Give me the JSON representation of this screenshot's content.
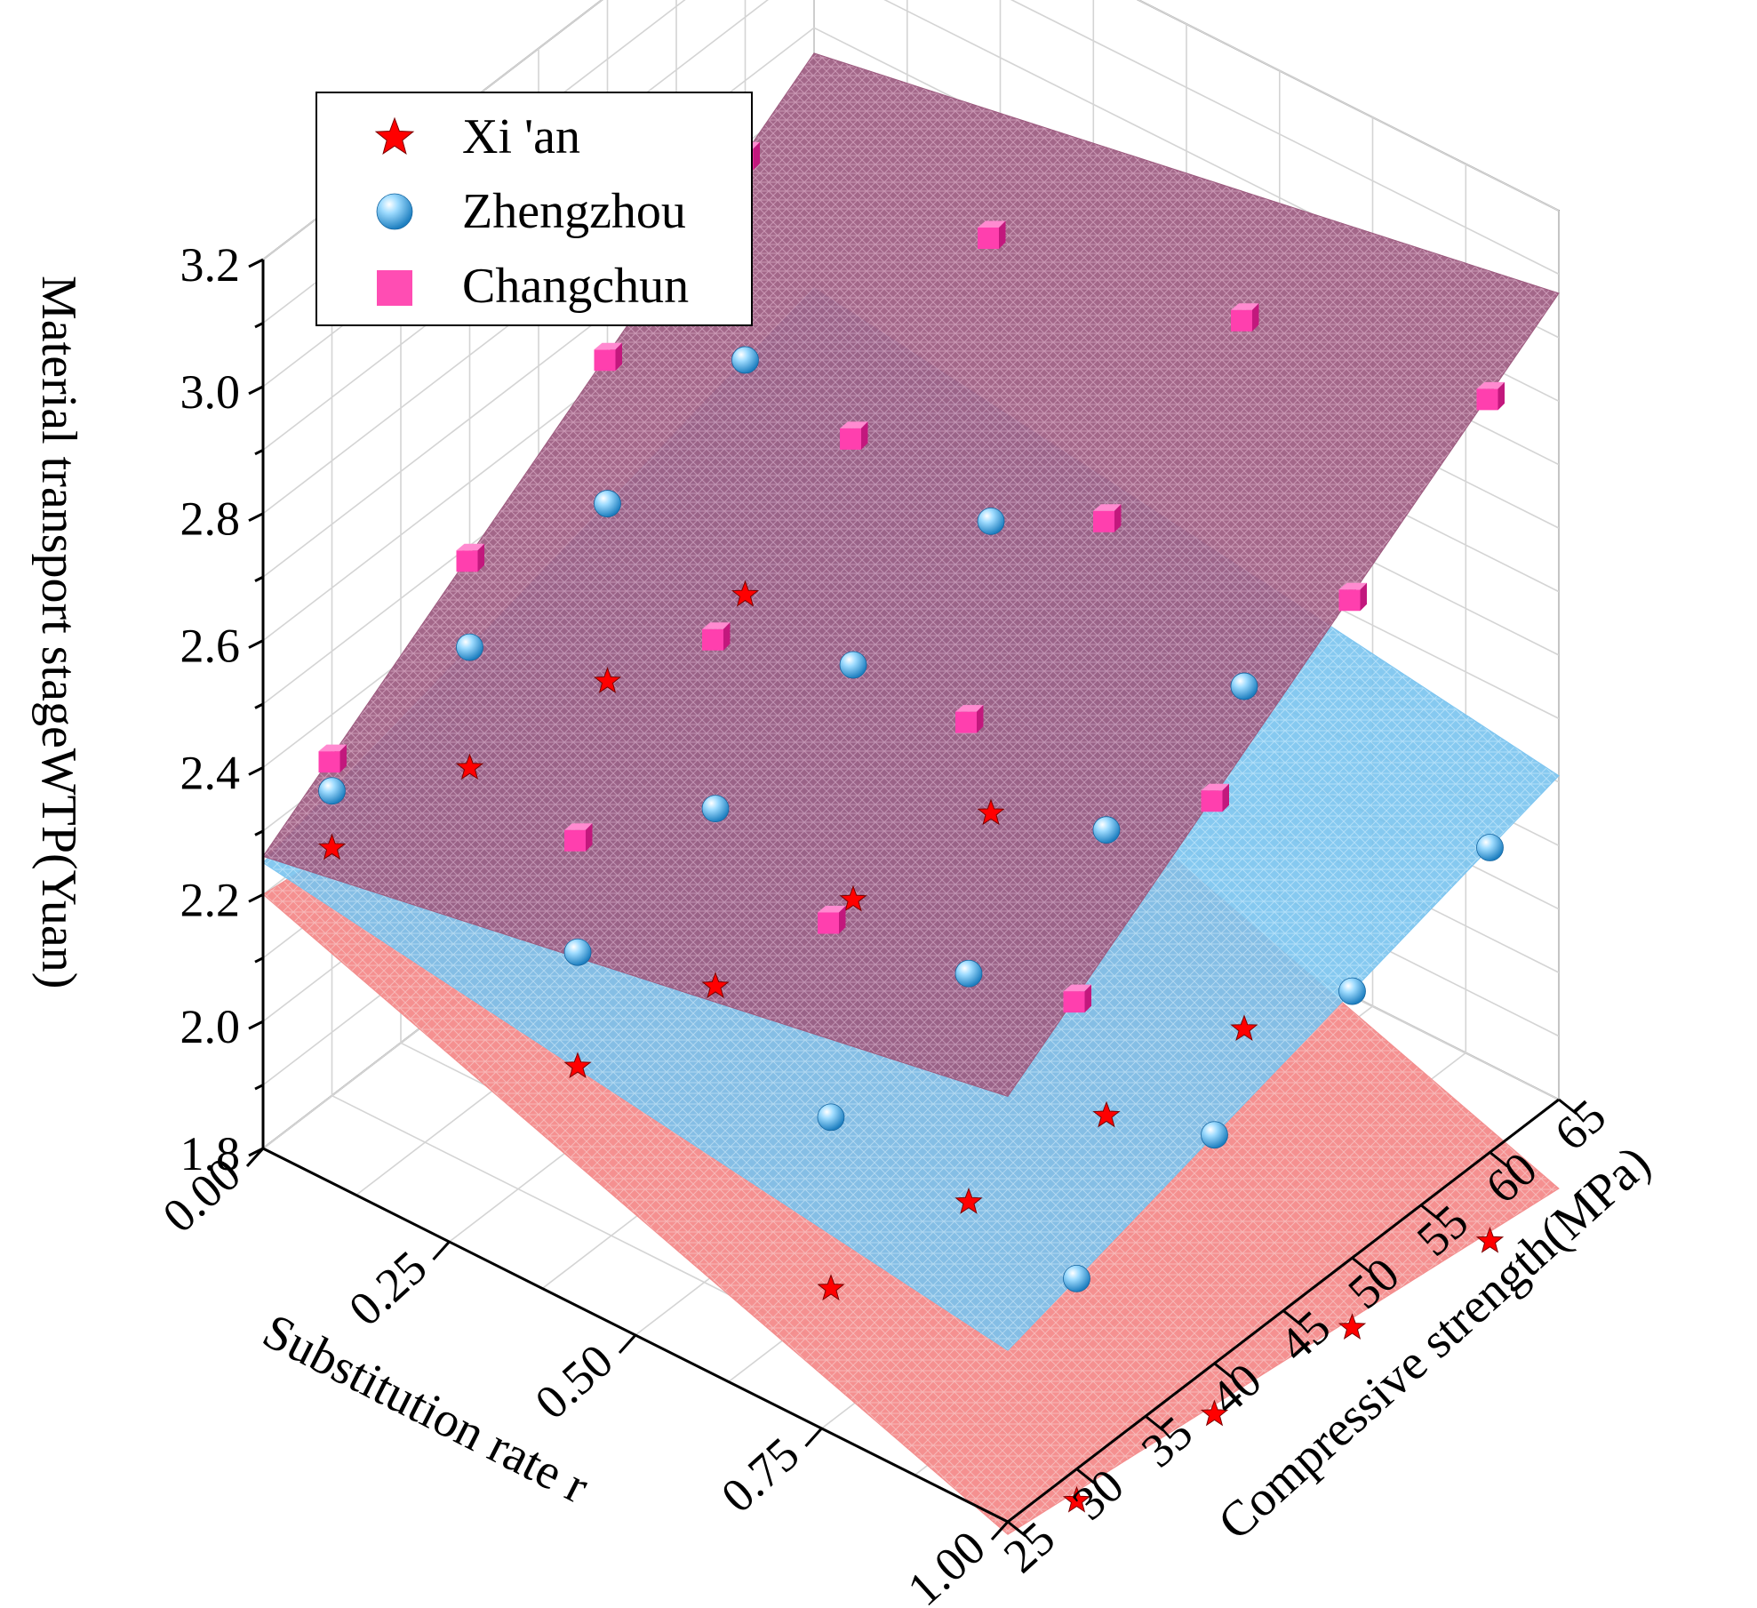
{
  "chart_data": {
    "type": "scatter3d-surface",
    "title": "",
    "zlabel": "Material transport stageWTP(Yuan)",
    "xlabel": "Substitution rate r",
    "ylabel": "Compressive strength(MPa)",
    "xlim": [
      0,
      1
    ],
    "ylim": [
      25,
      65
    ],
    "zlim": [
      1.8,
      3.2
    ],
    "xticks": [
      "0.00",
      "0.25",
      "0.50",
      "0.75",
      "1.00"
    ],
    "yticks": [
      "25",
      "30",
      "35",
      "40",
      "45",
      "50",
      "55",
      "60",
      "65"
    ],
    "zticks": [
      "1.8",
      "2.0",
      "2.2",
      "2.4",
      "2.6",
      "2.8",
      "3.0",
      "3.2"
    ],
    "grid": true,
    "legend_position": "top-left",
    "series": [
      {
        "name": "Xi 'an",
        "marker": "star",
        "color": "#ff0000",
        "surface_color": "#f28c8c",
        "points": [
          {
            "r": 0.0,
            "fc": 30,
            "wtp": 2.19
          },
          {
            "r": 0.0,
            "fc": 40,
            "wtp": 2.15
          },
          {
            "r": 0.0,
            "fc": 50,
            "wtp": 2.12
          },
          {
            "r": 0.0,
            "fc": 60,
            "wtp": 2.09
          },
          {
            "r": 0.33,
            "fc": 30,
            "wtp": 2.04
          },
          {
            "r": 0.33,
            "fc": 40,
            "wtp": 2.0
          },
          {
            "r": 0.33,
            "fc": 50,
            "wtp": 1.97
          },
          {
            "r": 0.33,
            "fc": 60,
            "wtp": 1.94
          },
          {
            "r": 0.67,
            "fc": 30,
            "wtp": 1.89
          },
          {
            "r": 0.67,
            "fc": 40,
            "wtp": 1.86
          },
          {
            "r": 0.67,
            "fc": 50,
            "wtp": 1.83
          },
          {
            "r": 0.67,
            "fc": 60,
            "wtp": 1.8
          },
          {
            "r": 1.0,
            "fc": 30,
            "wtp": 1.75
          },
          {
            "r": 1.0,
            "fc": 40,
            "wtp": 1.72
          },
          {
            "r": 1.0,
            "fc": 50,
            "wtp": 1.69
          },
          {
            "r": 1.0,
            "fc": 60,
            "wtp": 1.66
          }
        ],
        "surface": {
          "z_r0_fc25": 2.2,
          "z_r1_fc25": 1.78,
          "z_r0_fc65": 2.08,
          "z_r1_fc65": 1.66
        }
      },
      {
        "name": "Zhengzhou",
        "marker": "sphere",
        "color": "#3fa9e0",
        "surface_color": "#7cc4f0",
        "points": [
          {
            "r": 0.0,
            "fc": 30,
            "wtp": 2.28
          },
          {
            "r": 0.0,
            "fc": 40,
            "wtp": 2.34
          },
          {
            "r": 0.0,
            "fc": 50,
            "wtp": 2.4
          },
          {
            "r": 0.0,
            "fc": 60,
            "wtp": 2.46
          },
          {
            "r": 0.33,
            "fc": 30,
            "wtp": 2.22
          },
          {
            "r": 0.33,
            "fc": 40,
            "wtp": 2.28
          },
          {
            "r": 0.33,
            "fc": 50,
            "wtp": 2.34
          },
          {
            "r": 0.33,
            "fc": 60,
            "wtp": 2.4
          },
          {
            "r": 0.67,
            "fc": 30,
            "wtp": 2.16
          },
          {
            "r": 0.67,
            "fc": 40,
            "wtp": 2.22
          },
          {
            "r": 0.67,
            "fc": 50,
            "wtp": 2.28
          },
          {
            "r": 0.67,
            "fc": 60,
            "wtp": 2.34
          },
          {
            "r": 1.0,
            "fc": 30,
            "wtp": 2.1
          },
          {
            "r": 1.0,
            "fc": 40,
            "wtp": 2.16
          },
          {
            "r": 1.0,
            "fc": 50,
            "wtp": 2.22
          },
          {
            "r": 1.0,
            "fc": 60,
            "wtp": 2.28
          }
        ],
        "surface": {
          "z_r0_fc25": 2.25,
          "z_r1_fc25": 2.07,
          "z_r0_fc65": 2.49,
          "z_r1_fc65": 2.31
        }
      },
      {
        "name": "Changchun",
        "marker": "cube",
        "color": "#ff4db3",
        "surface_color": "#9c5a7e",
        "points": [
          {
            "r": 0.0,
            "fc": 30,
            "wtp": 2.33
          },
          {
            "r": 0.0,
            "fc": 40,
            "wtp": 2.48
          },
          {
            "r": 0.0,
            "fc": 50,
            "wtp": 2.63
          },
          {
            "r": 0.0,
            "fc": 60,
            "wtp": 2.78
          },
          {
            "r": 0.33,
            "fc": 30,
            "wtp": 2.4
          },
          {
            "r": 0.33,
            "fc": 40,
            "wtp": 2.55
          },
          {
            "r": 0.33,
            "fc": 50,
            "wtp": 2.7
          },
          {
            "r": 0.33,
            "fc": 60,
            "wtp": 2.85
          },
          {
            "r": 0.67,
            "fc": 30,
            "wtp": 2.47
          },
          {
            "r": 0.67,
            "fc": 40,
            "wtp": 2.62
          },
          {
            "r": 0.67,
            "fc": 50,
            "wtp": 2.77
          },
          {
            "r": 0.67,
            "fc": 60,
            "wtp": 2.92
          },
          {
            "r": 1.0,
            "fc": 30,
            "wtp": 2.54
          },
          {
            "r": 1.0,
            "fc": 40,
            "wtp": 2.69
          },
          {
            "r": 1.0,
            "fc": 50,
            "wtp": 2.84
          },
          {
            "r": 1.0,
            "fc": 60,
            "wtp": 2.99
          }
        ],
        "surface": {
          "z_r0_fc25": 2.26,
          "z_r1_fc25": 2.47,
          "z_r0_fc65": 2.86,
          "z_r1_fc65": 3.07
        }
      }
    ]
  }
}
